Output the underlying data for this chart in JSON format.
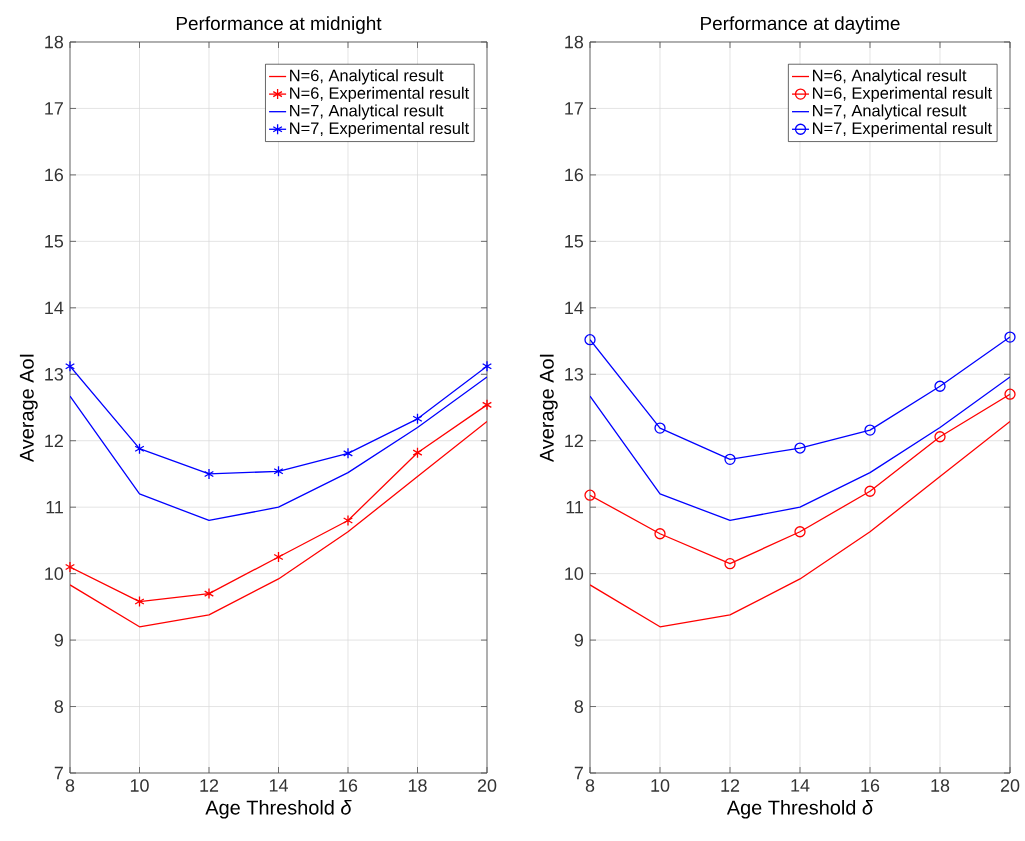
{
  "chart_data": [
    {
      "type": "line",
      "title": "Performance at midnight",
      "xlabel": "Age Threshold *δ*",
      "ylabel": "Average AoI",
      "x": [
        8,
        10,
        12,
        14,
        16,
        18,
        20
      ],
      "xlim": [
        8,
        20
      ],
      "xticks": [
        8,
        10,
        12,
        14,
        16,
        18,
        20
      ],
      "ylim": [
        7,
        18
      ],
      "yticks": [
        7,
        8,
        9,
        10,
        11,
        12,
        13,
        14,
        15,
        16,
        17,
        18
      ],
      "grid": true,
      "legend": "top right",
      "line_style": "solid",
      "series": [
        {
          "name": "N=6, Analytical result",
          "color": "#ff0000",
          "marker": "none",
          "values": [
            9.83,
            9.2,
            9.38,
            9.92,
            10.63,
            11.46,
            12.29
          ]
        },
        {
          "name": "N=6, Experimental result",
          "color": "#ff0000",
          "marker": "cross",
          "values": [
            10.1,
            9.58,
            9.7,
            10.25,
            10.8,
            11.82,
            12.54
          ]
        },
        {
          "name": "N=7, Analytical result",
          "color": "#0000ff",
          "marker": "none",
          "values": [
            12.67,
            11.2,
            10.8,
            11.0,
            11.52,
            12.2,
            12.96
          ]
        },
        {
          "name": "N=7, Experimental result",
          "color": "#0000ff",
          "marker": "cross",
          "values": [
            13.12,
            11.88,
            11.5,
            11.54,
            11.81,
            12.33,
            13.12
          ]
        }
      ]
    },
    {
      "type": "line",
      "title": "Performance at daytime",
      "xlabel": "Age Threshold *δ*",
      "ylabel": "Average AoI",
      "x": [
        8,
        10,
        12,
        14,
        16,
        18,
        20
      ],
      "xlim": [
        8,
        20
      ],
      "xticks": [
        8,
        10,
        12,
        14,
        16,
        18,
        20
      ],
      "ylim": [
        7,
        18
      ],
      "yticks": [
        7,
        8,
        9,
        10,
        11,
        12,
        13,
        14,
        15,
        16,
        17,
        18
      ],
      "grid": true,
      "legend": "top right",
      "line_style": "solid",
      "series": [
        {
          "name": "N=6, Analytical result",
          "color": "#ff0000",
          "marker": "none",
          "values": [
            9.83,
            9.2,
            9.38,
            9.92,
            10.63,
            11.46,
            12.29
          ]
        },
        {
          "name": "N=6, Experimental result",
          "color": "#ff0000",
          "marker": "circle",
          "values": [
            11.18,
            10.6,
            10.15,
            10.63,
            11.24,
            12.06,
            12.7
          ]
        },
        {
          "name": "N=7, Analytical result",
          "color": "#0000ff",
          "marker": "none",
          "values": [
            12.67,
            11.2,
            10.8,
            11.0,
            11.52,
            12.2,
            12.96
          ]
        },
        {
          "name": "N=7, Experimental result",
          "color": "#0000ff",
          "marker": "circle",
          "values": [
            13.52,
            12.19,
            11.72,
            11.89,
            12.16,
            12.82,
            13.56
          ]
        }
      ]
    }
  ]
}
